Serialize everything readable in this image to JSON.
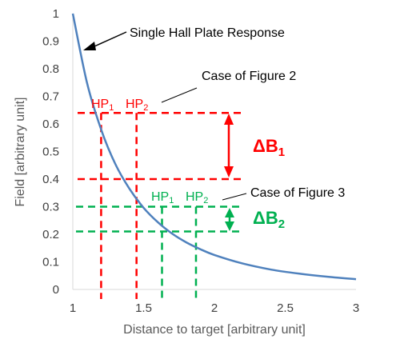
{
  "chart_data": {
    "type": "line",
    "xlabel": "Distance to target [arbitrary unit]",
    "ylabel": "Field [arbitrary unit]",
    "xlim": [
      1,
      3
    ],
    "ylim": [
      0,
      1
    ],
    "x_ticks": [
      "1",
      "1.5",
      "2",
      "2.5",
      "3"
    ],
    "y_ticks": [
      "0",
      "0.1",
      "0.2",
      "0.3",
      "0.4",
      "0.5",
      "0.6",
      "0.7",
      "0.8",
      "0.9",
      "1"
    ],
    "grid": false,
    "series": [
      {
        "name": "Single Hall Plate Response",
        "color": "#4f81bd",
        "x": [
          1.0,
          1.1,
          1.2,
          1.3,
          1.4,
          1.5,
          1.6,
          1.7,
          1.8,
          1.9,
          2.0,
          2.2,
          2.4,
          2.6,
          2.8,
          3.0
        ],
        "y": [
          1.0,
          0.75,
          0.58,
          0.455,
          0.365,
          0.296,
          0.244,
          0.203,
          0.171,
          0.146,
          0.125,
          0.094,
          0.072,
          0.057,
          0.046,
          0.037
        ]
      }
    ],
    "annotations": {
      "curve_label": "Single Hall Plate Response",
      "case2_label": "Case of Figure 2",
      "case3_label": "Case of Figure 3",
      "case2": {
        "color": "#ff0000",
        "hp1": "HP",
        "hp1_sub": "1",
        "hp2": "HP",
        "hp2_sub": "2",
        "delta": "ΔB",
        "delta_sub": "1",
        "x_positions": [
          1.2,
          1.45
        ],
        "y_levels": [
          0.64,
          0.4
        ]
      },
      "case3": {
        "color": "#00b050",
        "hp1": "HP",
        "hp1_sub": "1",
        "hp2": "HP",
        "hp2_sub": "2",
        "delta": "ΔB",
        "delta_sub": "2",
        "x_positions": [
          1.63,
          1.87
        ],
        "y_levels": [
          0.3,
          0.21
        ]
      }
    }
  }
}
